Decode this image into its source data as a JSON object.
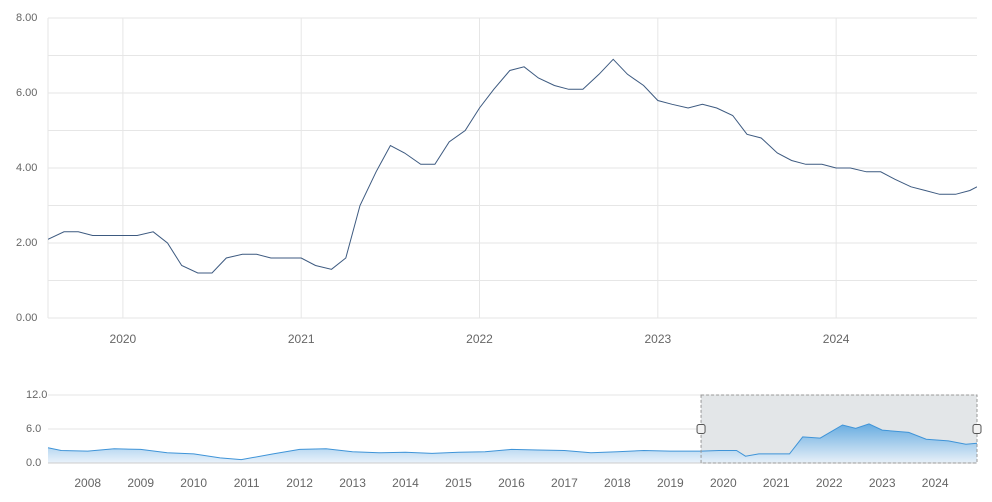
{
  "chart_data": [
    {
      "type": "line",
      "title": "",
      "xlabel": "",
      "ylabel": "",
      "xlim": [
        2019.58,
        2024.79
      ],
      "ylim": [
        0,
        8
      ],
      "y_ticks": [
        "0.00",
        "2.00",
        "4.00",
        "6.00",
        "8.00"
      ],
      "x_ticks": [
        "2020",
        "2021",
        "2022",
        "2023",
        "2024"
      ],
      "grid": true,
      "legend": "none",
      "line_color": "#3d5a80",
      "series": [
        {
          "x": [
            2019.58,
            2019.67,
            2019.75,
            2019.83,
            2019.92,
            2020.0,
            2020.08,
            2020.17,
            2020.25,
            2020.33,
            2020.42,
            2020.5,
            2020.58,
            2020.67,
            2020.75,
            2020.83,
            2020.92,
            2021.0,
            2021.08,
            2021.17,
            2021.25,
            2021.33,
            2021.42,
            2021.5,
            2021.58,
            2021.67,
            2021.75,
            2021.83,
            2021.92,
            2022.0,
            2022.08,
            2022.17,
            2022.25,
            2022.33,
            2022.42,
            2022.5,
            2022.58,
            2022.67,
            2022.75,
            2022.83,
            2022.92,
            2023.0,
            2023.08,
            2023.17,
            2023.25,
            2023.33,
            2023.42,
            2023.5,
            2023.58,
            2023.67,
            2023.75,
            2023.83,
            2023.92,
            2024.0,
            2024.08,
            2024.17,
            2024.25,
            2024.33,
            2024.42,
            2024.5,
            2024.58,
            2024.67,
            2024.75,
            2024.79
          ],
          "values": [
            2.1,
            2.3,
            2.3,
            2.2,
            2.2,
            2.2,
            2.2,
            2.3,
            2.0,
            1.4,
            1.2,
            1.2,
            1.6,
            1.7,
            1.7,
            1.6,
            1.6,
            1.6,
            1.4,
            1.3,
            1.6,
            3.0,
            3.9,
            4.6,
            4.4,
            4.1,
            4.1,
            4.7,
            5.0,
            5.6,
            6.1,
            6.6,
            6.7,
            6.4,
            6.2,
            6.1,
            6.1,
            6.5,
            6.9,
            6.5,
            6.2,
            5.8,
            5.7,
            5.6,
            5.7,
            5.6,
            5.4,
            4.9,
            4.8,
            4.4,
            4.2,
            4.1,
            4.1,
            4.0,
            4.0,
            3.9,
            3.9,
            3.7,
            3.5,
            3.4,
            3.3,
            3.3,
            3.4,
            3.5
          ]
        }
      ]
    },
    {
      "type": "area",
      "title": "",
      "xlabel": "",
      "ylabel": "",
      "xlim": [
        2007.25,
        2024.79
      ],
      "ylim": [
        0,
        12
      ],
      "y_ticks": [
        "0.0",
        "6.0",
        "12.0"
      ],
      "x_ticks": [
        "2008",
        "2009",
        "2010",
        "2011",
        "2012",
        "2013",
        "2014",
        "2015",
        "2016",
        "2017",
        "2018",
        "2019",
        "2020",
        "2021",
        "2022",
        "2023",
        "2024"
      ],
      "grid": true,
      "legend": "none",
      "fill_top": "#5aa6e0",
      "fill_bottom": "#e8f1fa",
      "selection_range": [
        2019.58,
        2024.79
      ],
      "series": [
        {
          "x": [
            2007.25,
            2007.5,
            2008.0,
            2008.5,
            2009.0,
            2009.5,
            2010.0,
            2010.5,
            2010.9,
            2011.5,
            2012.0,
            2012.5,
            2013.0,
            2013.5,
            2014.0,
            2014.5,
            2015.0,
            2015.5,
            2016.0,
            2016.5,
            2017.0,
            2017.5,
            2018.0,
            2018.5,
            2019.0,
            2019.58,
            2019.92,
            2020.25,
            2020.42,
            2020.67,
            2021.0,
            2021.25,
            2021.5,
            2021.83,
            2022.25,
            2022.5,
            2022.75,
            2023.0,
            2023.5,
            2023.83,
            2024.25,
            2024.58,
            2024.79
          ],
          "values": [
            2.7,
            2.2,
            2.1,
            2.5,
            2.4,
            1.8,
            1.6,
            0.9,
            0.6,
            1.6,
            2.4,
            2.5,
            2.0,
            1.8,
            1.9,
            1.7,
            1.9,
            2.0,
            2.4,
            2.3,
            2.2,
            1.8,
            2.0,
            2.2,
            2.1,
            2.1,
            2.2,
            2.2,
            1.2,
            1.6,
            1.6,
            1.6,
            4.6,
            4.4,
            6.7,
            6.1,
            6.9,
            5.8,
            5.4,
            4.2,
            3.9,
            3.3,
            3.5
          ]
        }
      ]
    }
  ]
}
